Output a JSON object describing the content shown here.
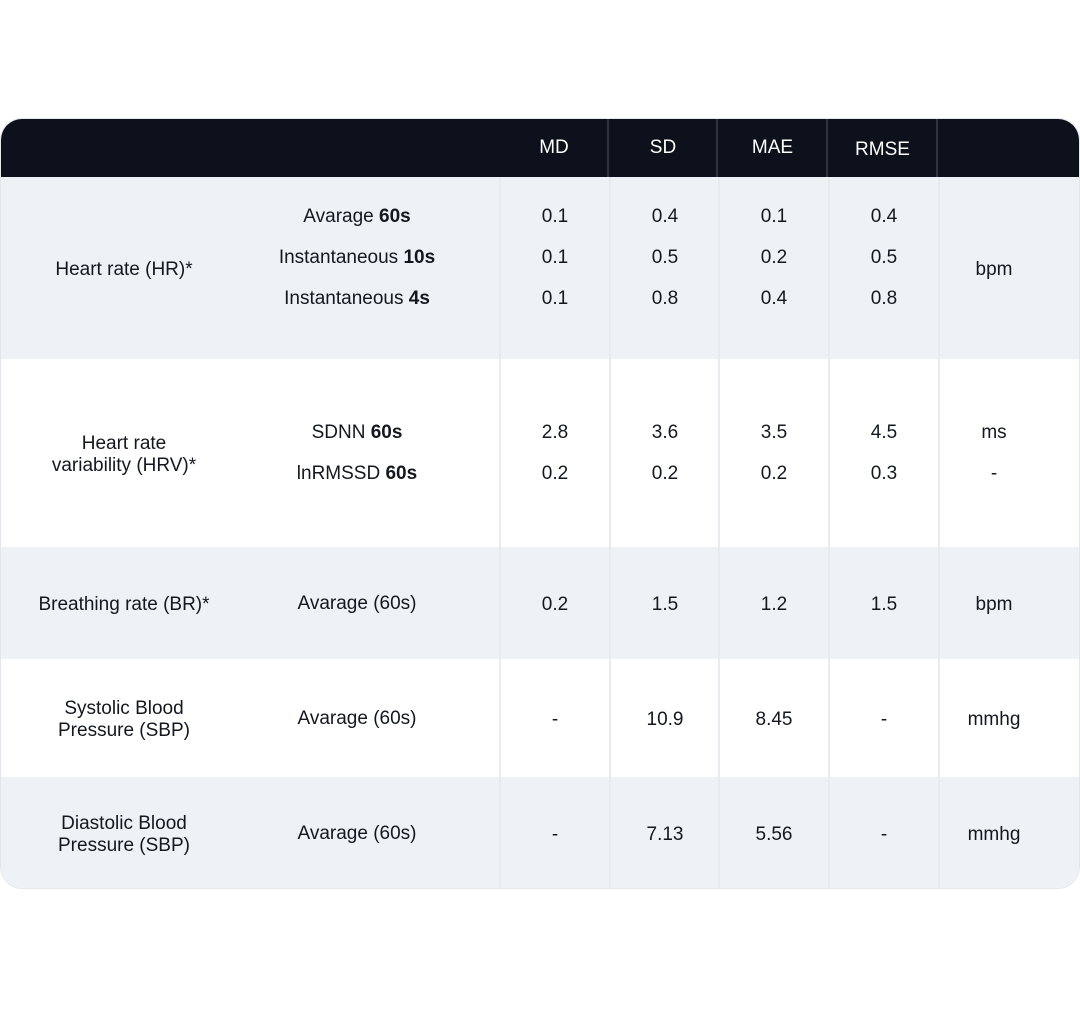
{
  "header": {
    "columns": [
      "MD",
      "SD",
      "MAE",
      "RMSE"
    ]
  },
  "rows": [
    {
      "metric": "Heart rate (HR)*",
      "subs": [
        {
          "label": "Avarage ",
          "bold": "60s",
          "values": [
            "0.1",
            "0.4",
            "0.1",
            "0.4"
          ]
        },
        {
          "label": "Instantaneous ",
          "bold": "10s",
          "values": [
            "0.1",
            "0.5",
            "0.2",
            "0.5"
          ]
        },
        {
          "label": "Instantaneous ",
          "bold": "4s",
          "values": [
            "0.1",
            "0.8",
            "0.4",
            "0.8"
          ]
        }
      ],
      "units": [
        "bpm"
      ]
    },
    {
      "metric_line1": "Heart rate",
      "metric_line2": "variability (HRV)*",
      "subs": [
        {
          "label": "SDNN ",
          "bold": "60s",
          "values": [
            "2.8",
            "3.6",
            "3.5",
            "4.5"
          ],
          "unit": "ms"
        },
        {
          "label": "lnRMSSD ",
          "bold": "60s",
          "values": [
            "0.2",
            "0.2",
            "0.2",
            "0.3"
          ],
          "unit": "-"
        }
      ]
    },
    {
      "metric": "Breathing rate (BR)*",
      "sub": "Avarage (60s)",
      "values": [
        "0.2",
        "1.5",
        "1.2",
        "1.5"
      ],
      "unit": "bpm"
    },
    {
      "metric_line1": "Systolic Blood",
      "metric_line2": "Pressure (SBP)",
      "sub": "Avarage (60s)",
      "values": [
        "-",
        "10.9",
        "8.45",
        "-"
      ],
      "unit": "mmhg"
    },
    {
      "metric_line1": "Diastolic Blood",
      "metric_line2": "Pressure (SBP)",
      "sub": "Avarage (60s)",
      "values": [
        "-",
        "7.13",
        "5.56",
        "-"
      ],
      "unit": "mmhg"
    }
  ]
}
